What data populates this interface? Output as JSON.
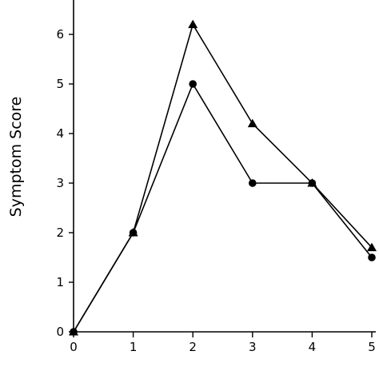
{
  "chart_data": {
    "type": "line",
    "title": "",
    "xlabel": "",
    "ylabel": "Symptom Score",
    "xlim": [
      0,
      5
    ],
    "ylim": [
      0,
      7
    ],
    "x_ticks": [
      0,
      1,
      2,
      3,
      4,
      5
    ],
    "y_ticks": [
      0,
      1,
      2,
      3,
      4,
      5,
      6
    ],
    "grid": false,
    "legend": "none",
    "colors": {
      "line": "#000000",
      "background": "#ffffff"
    },
    "series": [
      {
        "marker": "triangle",
        "x": [
          0,
          1,
          2,
          3,
          4,
          5
        ],
        "y": [
          0,
          2,
          6.2,
          4.2,
          3,
          1.7
        ]
      },
      {
        "marker": "circle",
        "x": [
          0,
          1,
          2,
          3,
          4,
          5
        ],
        "y": [
          0,
          2,
          5,
          3,
          3,
          1.5
        ]
      }
    ]
  }
}
